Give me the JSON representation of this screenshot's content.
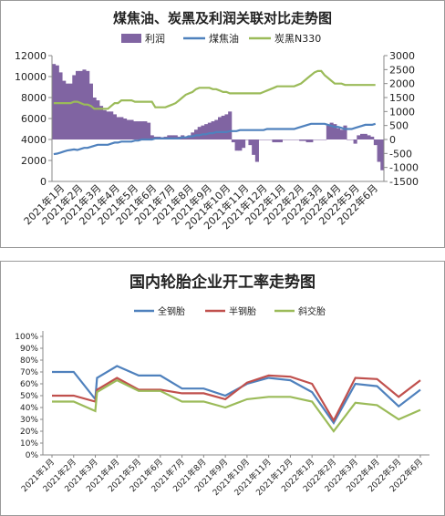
{
  "chart_data": [
    {
      "type": "area",
      "title": "煤焦油、炭黑及利润关联对比走势图",
      "legend": [
        "利润",
        "煤焦油",
        "炭黑N330"
      ],
      "legend_position": "top",
      "grid": false,
      "colors": {
        "profit": "#8064a2",
        "coal_tar": "#4f81bd",
        "carbon_black": "#9bbb59"
      },
      "left_axis": {
        "ylim": [
          0,
          12000
        ],
        "ticks": [
          "0",
          "2000",
          "4000",
          "6000",
          "8000",
          "10000",
          "12000"
        ]
      },
      "right_axis": {
        "ylim": [
          -1500,
          3000
        ],
        "ticks": [
          "-1500",
          "-1000",
          "-500",
          "0",
          "500",
          "1000",
          "1500",
          "2000",
          "2500",
          "3000"
        ]
      },
      "x_labels": [
        "2021年1月",
        "2021年2月",
        "2021年3月",
        "2021年4月",
        "2021年5月",
        "2021年6月",
        "2021年7月",
        "2021年8月",
        "2021年9月",
        "2021年10月",
        "2021年11月",
        "2021年12月",
        "2022年1月",
        "2022年2月",
        "2022年3月",
        "2022年4月",
        "2022年5月",
        "2022年6月"
      ],
      "series": [
        {
          "name": "利润",
          "axis": "right",
          "kind": "area",
          "values": [
            2700,
            2650,
            2400,
            2100,
            2000,
            2000,
            2300,
            2450,
            2450,
            2500,
            2450,
            2000,
            1500,
            1400,
            1200,
            1050,
            1000,
            1000,
            900,
            800,
            800,
            750,
            700,
            700,
            650,
            650,
            650,
            650,
            600,
            150,
            100,
            100,
            80,
            100,
            150,
            150,
            150,
            100,
            150,
            100,
            150,
            250,
            350,
            450,
            500,
            550,
            600,
            650,
            700,
            800,
            850,
            900,
            1000,
            -100,
            -400,
            -400,
            -300,
            0,
            -200,
            -550,
            -800,
            0,
            0,
            0,
            0,
            -100,
            -100,
            -100,
            0,
            0,
            0,
            0,
            0,
            -50,
            -50,
            -100,
            -100,
            0,
            0,
            0,
            0,
            500,
            600,
            550,
            400,
            350,
            500,
            0,
            0,
            -150,
            150,
            200,
            200,
            150,
            100,
            -200,
            -800,
            -1100
          ]
        },
        {
          "name": "煤焦油",
          "axis": "left",
          "kind": "line",
          "values": [
            2600,
            2650,
            2750,
            2850,
            2950,
            3000,
            3050,
            3000,
            3100,
            3200,
            3200,
            3300,
            3400,
            3500,
            3500,
            3500,
            3500,
            3600,
            3700,
            3700,
            3800,
            3800,
            3800,
            3800,
            3900,
            3900,
            4000,
            4000,
            4000,
            4000,
            4100,
            4100,
            4100,
            4100,
            4100,
            4100,
            4100,
            4100,
            4200,
            4200,
            4300,
            4300,
            4400,
            4400,
            4500,
            4500,
            4600,
            4600,
            4700,
            4700,
            4700,
            4700,
            4800,
            4800,
            4800,
            4900,
            4900,
            4900,
            4900,
            4900,
            4900,
            4900,
            4900,
            5000,
            5000,
            5000,
            5000,
            5000,
            5000,
            5000,
            5000,
            5000,
            5100,
            5200,
            5300,
            5400,
            5500,
            5500,
            5500,
            5500,
            5500,
            5400,
            5300,
            5200,
            5200,
            5100,
            5000,
            5000,
            5000,
            5100,
            5200,
            5300,
            5400,
            5400,
            5400,
            5500
          ]
        },
        {
          "name": "炭黑N330",
          "axis": "right",
          "kind": "line",
          "values": [
            1300,
            1300,
            1300,
            1300,
            1300,
            1300,
            1350,
            1350,
            1300,
            1250,
            1250,
            1200,
            1100,
            1100,
            1100,
            1100,
            1100,
            1200,
            1300,
            1300,
            1400,
            1400,
            1400,
            1400,
            1350,
            1350,
            1350,
            1350,
            1350,
            1350,
            1150,
            1150,
            1150,
            1150,
            1200,
            1250,
            1300,
            1400,
            1500,
            1600,
            1650,
            1700,
            1800,
            1850,
            1850,
            1850,
            1850,
            1800,
            1800,
            1750,
            1700,
            1700,
            1650,
            1650,
            1650,
            1650,
            1650,
            1650,
            1650,
            1650,
            1650,
            1650,
            1700,
            1750,
            1800,
            1850,
            1900,
            1900,
            1900,
            1900,
            1900,
            1900,
            1950,
            2000,
            2100,
            2200,
            2300,
            2400,
            2450,
            2450,
            2300,
            2200,
            2100,
            2000,
            2000,
            2000,
            1950,
            1950,
            1950,
            1950,
            1950,
            1950,
            1950,
            1950,
            1950,
            1950
          ]
        }
      ]
    },
    {
      "type": "line",
      "title": "国内轮胎企业开工率走势图",
      "legend": [
        "全钢胎",
        "半钢胎",
        "斜交胎"
      ],
      "legend_position": "top",
      "grid": false,
      "colors": {
        "all_steel": "#4f81bd",
        "semi_steel": "#c0504d",
        "bias": "#9bbb59"
      },
      "ylim": [
        0,
        100
      ],
      "y_ticks": [
        "0%",
        "10%",
        "20%",
        "30%",
        "40%",
        "50%",
        "60%",
        "70%",
        "80%",
        "90%",
        "100%"
      ],
      "x_labels": [
        "2021年1月",
        "2021年2月",
        "2021年3月",
        "2021年4月",
        "2021年5月",
        "2021年6月",
        "2021年7月",
        "2021年8月",
        "2021年9月",
        "2021年10月",
        "2021年11月",
        "2021年12月",
        "2022年1月",
        "2022年2月",
        "2022年3月",
        "2022年4月",
        "2022年5月",
        "2022年6月"
      ],
      "series": [
        {
          "name": "全钢胎",
          "values": [
            [
              0,
              70
            ],
            [
              1,
              70
            ],
            [
              2,
              47
            ],
            [
              2.08,
              65
            ],
            [
              3,
              75
            ],
            [
              4,
              67
            ],
            [
              5,
              67
            ],
            [
              6,
              56
            ],
            [
              7,
              56
            ],
            [
              8,
              50
            ],
            [
              9,
              60
            ],
            [
              10,
              65
            ],
            [
              11,
              63
            ],
            [
              12,
              53
            ],
            [
              13,
              27
            ],
            [
              14,
              60
            ],
            [
              15,
              58
            ],
            [
              16,
              41
            ],
            [
              17,
              55
            ]
          ]
        },
        {
          "name": "半钢胎",
          "values": [
            [
              0,
              50
            ],
            [
              1,
              50
            ],
            [
              2,
              45
            ],
            [
              2.08,
              55
            ],
            [
              3,
              65
            ],
            [
              4,
              55
            ],
            [
              5,
              55
            ],
            [
              6,
              52
            ],
            [
              7,
              52
            ],
            [
              8,
              47
            ],
            [
              9,
              61
            ],
            [
              10,
              67
            ],
            [
              11,
              66
            ],
            [
              12,
              60
            ],
            [
              13,
              29
            ],
            [
              14,
              65
            ],
            [
              15,
              64
            ],
            [
              16,
              49
            ],
            [
              17,
              63
            ]
          ]
        },
        {
          "name": "斜交胎",
          "values": [
            [
              0,
              45
            ],
            [
              1,
              45
            ],
            [
              2,
              37
            ],
            [
              2.08,
              53
            ],
            [
              3,
              63
            ],
            [
              4,
              54
            ],
            [
              5,
              54
            ],
            [
              6,
              45
            ],
            [
              7,
              45
            ],
            [
              8,
              40
            ],
            [
              9,
              47
            ],
            [
              10,
              49
            ],
            [
              11,
              49
            ],
            [
              12,
              45
            ],
            [
              13,
              20
            ],
            [
              14,
              44
            ],
            [
              15,
              42
            ],
            [
              16,
              30
            ],
            [
              17,
              38
            ]
          ]
        }
      ]
    }
  ]
}
